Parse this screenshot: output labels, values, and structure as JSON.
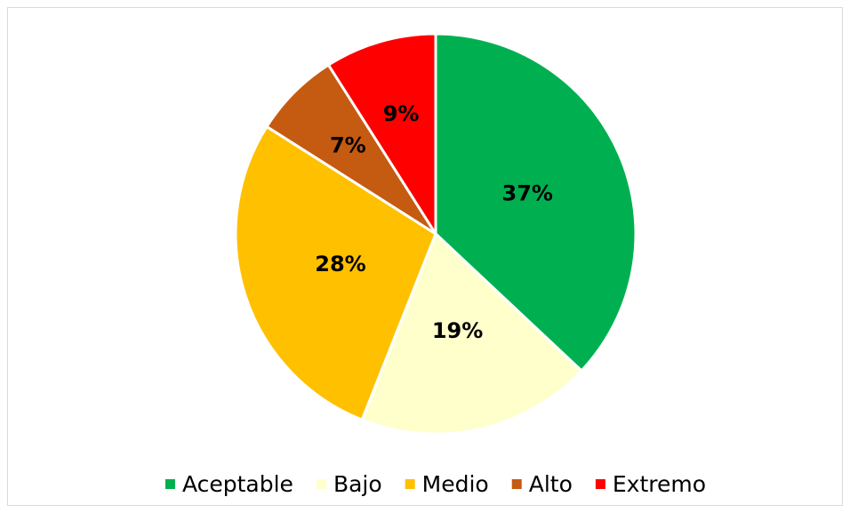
{
  "chart_data": {
    "type": "pie",
    "categories": [
      "Aceptable",
      "Bajo",
      "Medio",
      "Alto",
      "Extremo"
    ],
    "values": [
      37,
      19,
      28,
      7,
      9
    ],
    "value_labels": [
      "37%",
      "19%",
      "28%",
      "7%",
      "9%"
    ],
    "colors": [
      "#00b050",
      "#ffffcc",
      "#ffc000",
      "#c55a11",
      "#ff0000"
    ],
    "legend": "bottom"
  }
}
